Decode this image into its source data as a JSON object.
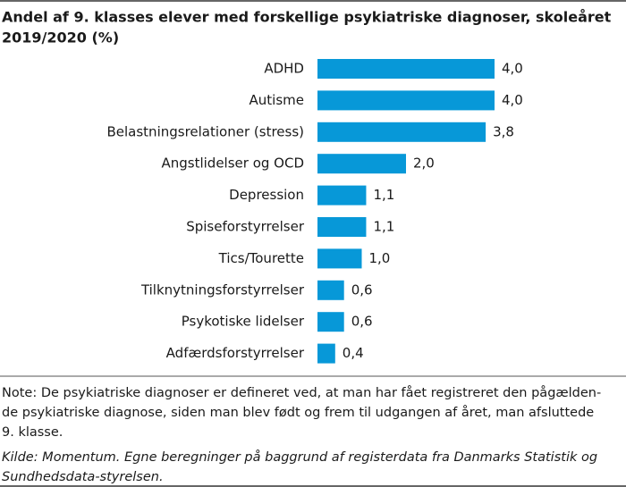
{
  "chart_data": {
    "type": "bar",
    "orientation": "horizontal",
    "title": [
      "Andel af 9. klasses elever med forskellige psykiatriske diagnoser, skoleåret",
      "2019/2020 (%)"
    ],
    "categories": [
      "ADHD",
      "Autisme",
      "Belastningsrelationer (stress)",
      "Angstlidelser og OCD",
      "Depression",
      "Spiseforstyrrelser",
      "Tics/Tourette",
      "Tilknytningsforstyrrelser",
      "Psykotiske lidelser",
      "Adfærdsforstyrrelser"
    ],
    "values": [
      4.0,
      4.0,
      3.8,
      2.0,
      1.1,
      1.1,
      1.0,
      0.6,
      0.6,
      0.4
    ],
    "value_labels": [
      "4,0",
      "4,0",
      "3,8",
      "2,0",
      "1,1",
      "1,1",
      "1,0",
      "0,6",
      "0,6",
      "0,4"
    ],
    "color": "#0798d8",
    "note": [
      "Note: De psykiatriske diagnoser er defineret ved, at man har fået registreret den pågælden-",
      "de psykiatriske diagnose, siden man blev født og frem til udgangen af året, man afsluttede",
      "9. klasse."
    ],
    "source": [
      "Kilde: Momentum. Egne beregninger på baggrund af registerdata fra Danmarks Statistik og",
      "Sundhedsdata-styrelsen."
    ]
  }
}
